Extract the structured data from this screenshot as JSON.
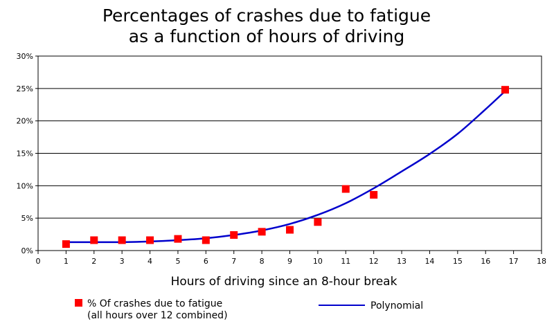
{
  "chart_data": {
    "type": "scatter",
    "title": [
      "Percentages of crashes due to fatigue",
      "as a function of hours of driving"
    ],
    "xlabel": "Hours of driving since an 8-hour break",
    "ylabel": "",
    "xlim": [
      0,
      18
    ],
    "ylim": [
      0,
      30
    ],
    "x_ticks": [
      0,
      1,
      2,
      3,
      4,
      5,
      6,
      7,
      8,
      9,
      10,
      11,
      12,
      13,
      14,
      15,
      16,
      17,
      18
    ],
    "y_ticks": [
      0,
      5,
      10,
      15,
      20,
      25,
      30
    ],
    "y_tick_labels": [
      "0%",
      "5%",
      "10%",
      "15%",
      "20%",
      "25%",
      "30%"
    ],
    "grid": "horizontal",
    "legend_position": "bottom",
    "colors": {
      "points": "#ff0000",
      "line": "#0000cc",
      "grid": "#000000"
    },
    "series": [
      {
        "name": "% Of crashes due to fatigue",
        "name_line2": "(all hours over 12 combined)",
        "kind": "scatter",
        "x": [
          1,
          2,
          3,
          4,
          5,
          6,
          7,
          8,
          9,
          10,
          11,
          12,
          16.7
        ],
        "y": [
          1.0,
          1.6,
          1.6,
          1.6,
          1.8,
          1.6,
          2.4,
          2.9,
          3.2,
          4.4,
          9.5,
          8.6,
          24.8
        ]
      },
      {
        "name": "Polynomial",
        "kind": "line",
        "x": [
          1,
          2,
          3,
          4,
          5,
          6,
          7,
          8,
          9,
          10,
          11,
          12,
          13,
          14,
          15,
          16,
          16.7
        ],
        "y": [
          1.3,
          1.3,
          1.3,
          1.4,
          1.6,
          1.9,
          2.4,
          3.1,
          4.1,
          5.5,
          7.3,
          9.6,
          12.2,
          14.9,
          18.0,
          21.8,
          24.6
        ]
      }
    ]
  }
}
